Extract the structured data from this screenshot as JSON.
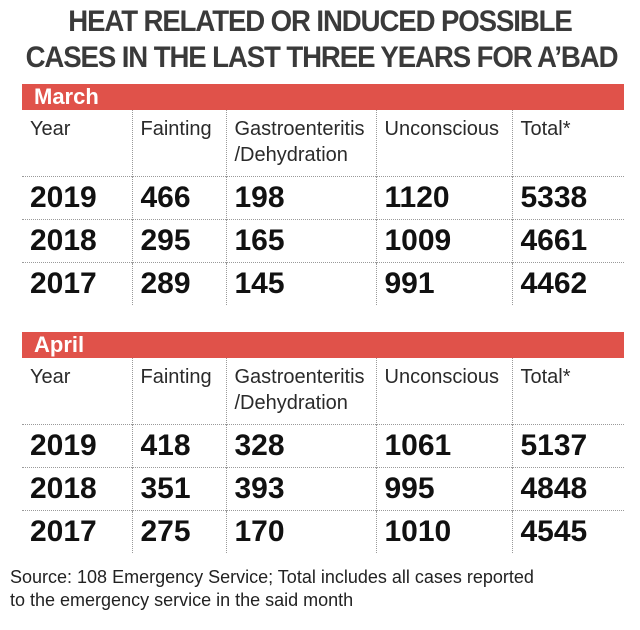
{
  "title_lines": [
    "HEAT RELATED OR INDUCED POSSIBLE",
    "CASES IN THE LAST THREE YEARS FOR A’BAD"
  ],
  "columns": [
    "Year",
    "Fainting",
    "Gastroenteritis\n/Dehydration",
    "Unconscious",
    "Total*"
  ],
  "chart_data": [
    {
      "type": "table",
      "section": "March",
      "columns": [
        "Year",
        "Fainting",
        "Gastroenteritis/Dehydration",
        "Unconscious",
        "Total*"
      ],
      "rows": [
        [
          "2019",
          "466",
          "198",
          "1120",
          "5338"
        ],
        [
          "2018",
          "295",
          "165",
          "1009",
          "4661"
        ],
        [
          "2017",
          "289",
          "145",
          "991",
          "4462"
        ]
      ]
    },
    {
      "type": "table",
      "section": "April",
      "columns": [
        "Year",
        "Fainting",
        "Gastroenteritis/Dehydration",
        "Unconscious",
        "Total*"
      ],
      "rows": [
        [
          "2019",
          "418",
          "328",
          "1061",
          "5137"
        ],
        [
          "2018",
          "351",
          "393",
          "995",
          "4848"
        ],
        [
          "2017",
          "275",
          "170",
          "1010",
          "4545"
        ]
      ]
    }
  ],
  "accent_color": "#e0524a",
  "source_lines": [
    "Source: 108 Emergency Service; Total includes all cases reported",
    "to the emergency service in the said month"
  ]
}
